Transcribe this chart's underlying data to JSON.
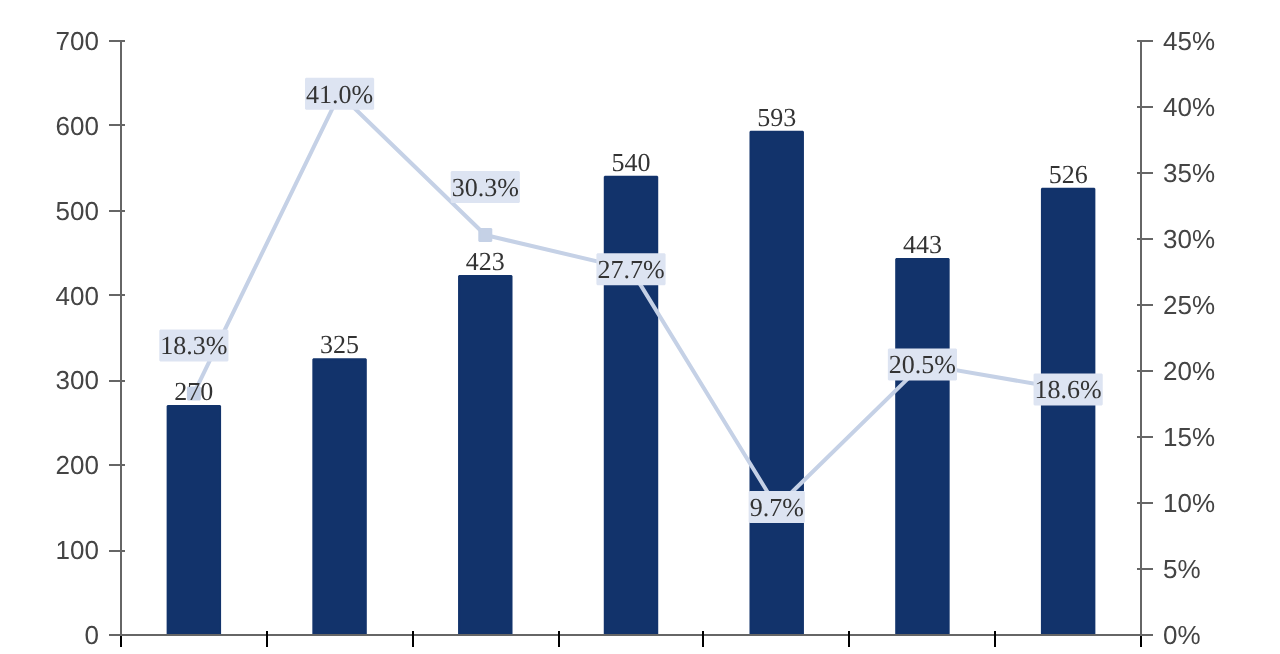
{
  "chart_data": {
    "type": "bar",
    "categories": [
      null,
      null,
      null,
      null,
      null,
      null,
      null
    ],
    "series": [
      {
        "type": "bar",
        "color": "#12336b",
        "values": [
          270,
          325,
          423,
          540,
          593,
          443,
          526
        ]
      },
      {
        "type": "line",
        "axis": "y2",
        "marker": "square",
        "color": "#c5d1e6",
        "values": [
          18.3,
          41.0,
          30.3,
          27.7,
          9.7,
          20.5,
          18.6
        ],
        "value_labels": [
          "18.3%",
          "41.0%",
          "30.3%",
          "27.7%",
          "9.7%",
          "20.5%",
          "18.6%"
        ]
      }
    ],
    "data_labels": true,
    "ylim": [
      0,
      700
    ],
    "yticks": [
      0,
      100,
      200,
      300,
      400,
      500,
      600,
      700
    ],
    "y2lim": [
      0,
      45
    ],
    "y2ticks": [
      {
        "value": 0,
        "label": "0%"
      },
      {
        "value": 5,
        "label": "5%"
      },
      {
        "value": 10,
        "label": "10%"
      },
      {
        "value": 15,
        "label": "15%"
      },
      {
        "value": 20,
        "label": "20%"
      },
      {
        "value": 25,
        "label": "25%"
      },
      {
        "value": 30,
        "label": "30%"
      },
      {
        "value": 35,
        "label": "35%"
      },
      {
        "value": 40,
        "label": "40%"
      },
      {
        "value": 45,
        "label": "45%"
      }
    ],
    "grid": false
  }
}
